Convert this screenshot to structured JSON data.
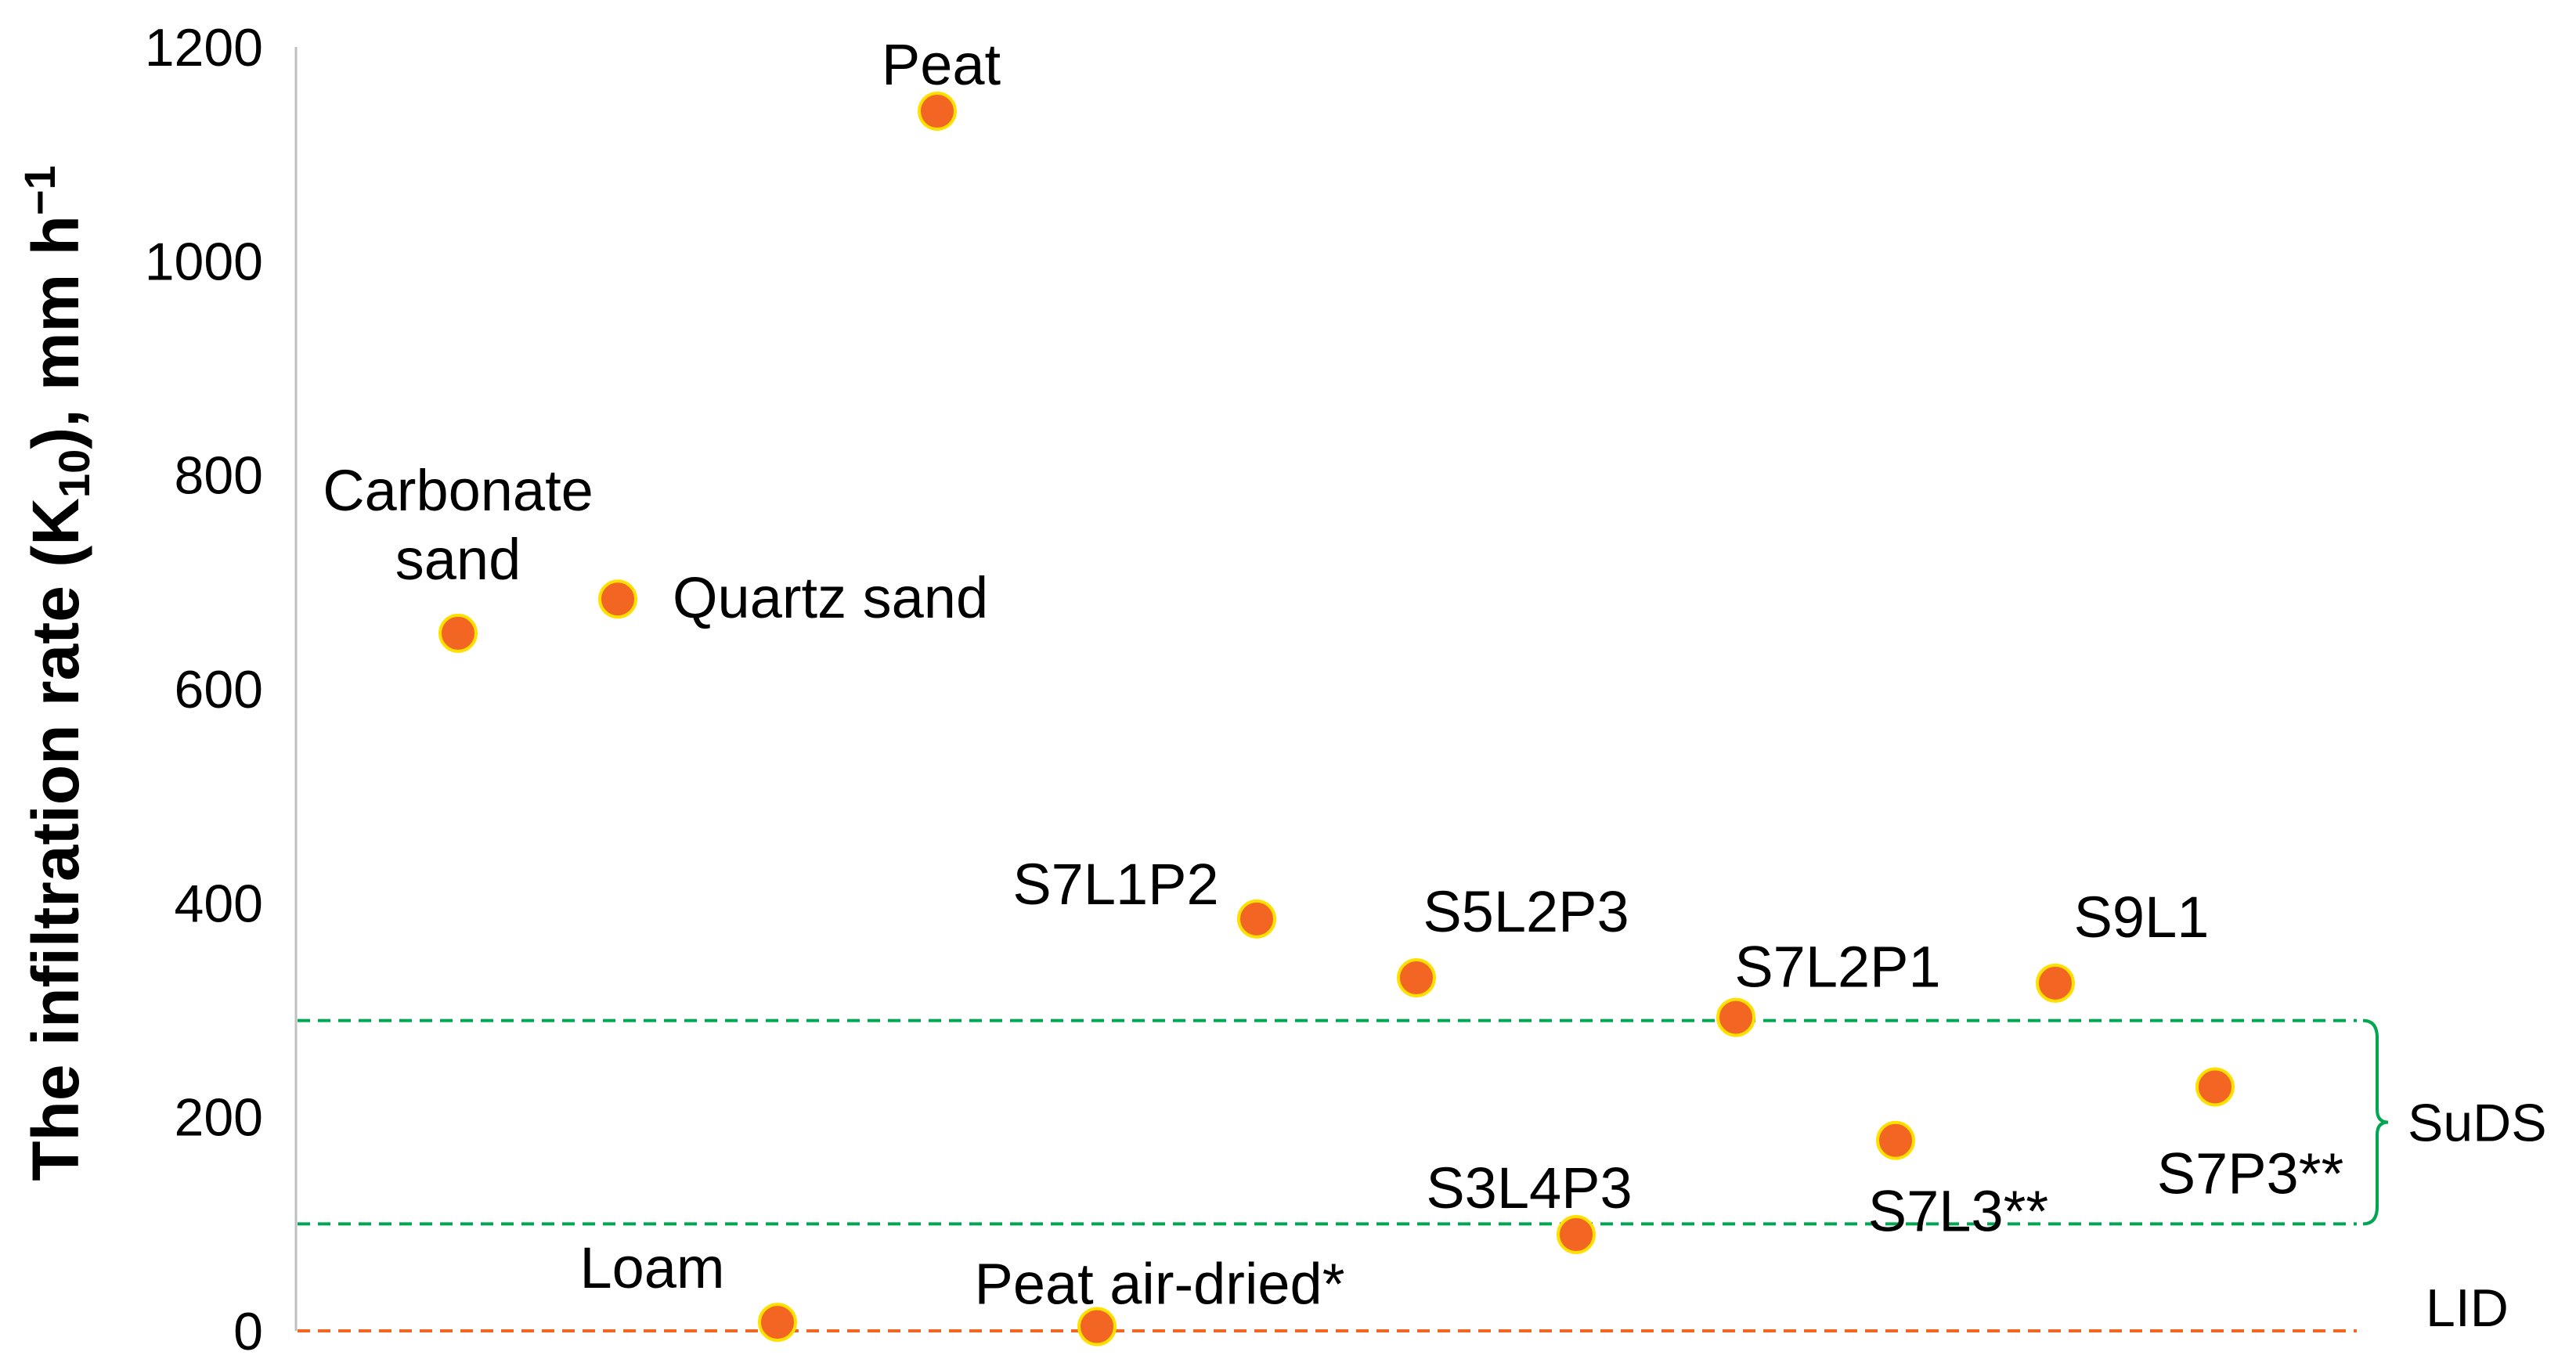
{
  "chart_data": {
    "type": "scatter",
    "title": "",
    "ylabel": {
      "prefix": "The infiltration rate (K",
      "subscript": "10",
      "middle": "), mm h",
      "superscript": "−1"
    },
    "ylim": [
      0,
      1200
    ],
    "yticks": [
      0,
      200,
      400,
      600,
      800,
      1000,
      1200
    ],
    "grid": false,
    "marker_color": "#F26522",
    "marker_edge_color": "#FFE000",
    "points": [
      {
        "x": 1,
        "y": 652,
        "label": [
          "Carbonate",
          "sand"
        ]
      },
      {
        "x": 2,
        "y": 684,
        "label": [
          "Quartz sand"
        ]
      },
      {
        "x": 3,
        "y": 8,
        "label": [
          "Loam"
        ]
      },
      {
        "x": 4,
        "y": 1140,
        "label": [
          "Peat"
        ]
      },
      {
        "x": 5,
        "y": 4,
        "label": [
          "Peat air-dried*"
        ]
      },
      {
        "x": 6,
        "y": 385,
        "label": [
          "S7L1P2"
        ]
      },
      {
        "x": 7,
        "y": 330,
        "label": [
          "S5L2P3"
        ]
      },
      {
        "x": 8,
        "y": 90,
        "label": [
          "S3L4P3"
        ]
      },
      {
        "x": 9,
        "y": 293,
        "label": [
          "S7L2P1"
        ]
      },
      {
        "x": 10,
        "y": 178,
        "label": [
          "S7L3**"
        ]
      },
      {
        "x": 11,
        "y": 325,
        "label": [
          "S9L1"
        ]
      },
      {
        "x": 12,
        "y": 228,
        "label": [
          "S7P3**"
        ]
      }
    ],
    "reference_lines": [
      {
        "y": 290,
        "color": "#00A651",
        "style": "dashed"
      },
      {
        "y": 100,
        "color": "#00A651",
        "style": "dashed"
      },
      {
        "y": 0,
        "color": "#F26522",
        "style": "dashed"
      }
    ],
    "ranges": [
      {
        "label": "SuDS",
        "from": 100,
        "to": 290,
        "color": "#00A651"
      },
      {
        "label": "LID",
        "at": 0
      }
    ]
  }
}
